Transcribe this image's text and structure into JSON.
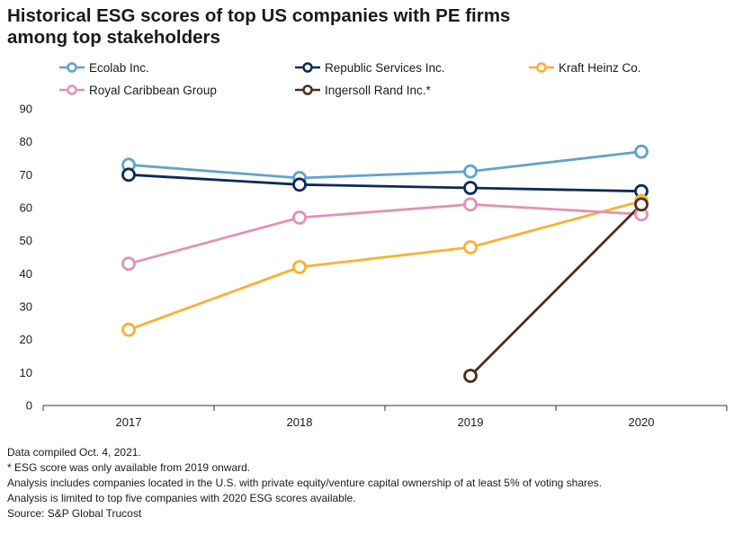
{
  "title_line1": "Historical ESG scores of top US companies with PE firms",
  "title_line2": "among top stakeholders",
  "chart_data": {
    "type": "line",
    "title": "Historical ESG scores of top US companies with PE firms among top stakeholders",
    "xlabel": "",
    "ylabel": "",
    "categories": [
      "2017",
      "2018",
      "2019",
      "2020"
    ],
    "ylim": [
      0,
      90
    ],
    "yticks": [
      0,
      10,
      20,
      30,
      40,
      50,
      60,
      70,
      80,
      90
    ],
    "grid": false,
    "legend_position": "top",
    "series": [
      {
        "name": "Ecolab Inc.",
        "color": "#5fa3cc",
        "values": [
          73,
          69,
          71,
          77
        ]
      },
      {
        "name": "Republic Services Inc.",
        "color": "#0e2a57",
        "values": [
          70,
          67,
          66,
          65
        ]
      },
      {
        "name": "Kraft Heinz Co.",
        "color": "#fbb033",
        "values": [
          23,
          42,
          48,
          62
        ]
      },
      {
        "name": "Royal Caribbean Group",
        "color": "#e093b5",
        "values": [
          43,
          57,
          61,
          58
        ]
      },
      {
        "name": "Ingersoll Rand Inc.*",
        "color": "#4f2d1e",
        "values": [
          null,
          null,
          9,
          61
        ]
      }
    ]
  },
  "notes": [
    "Data compiled Oct. 4, 2021.",
    "* ESG score was only available from 2019 onward.",
    "Analysis includes companies located in the U.S. with private equity/venture capital ownership of at least 5% of voting shares.",
    "Analysis is limited to top five companies with 2020 ESG scores available.",
    "Source: S&P Global Trucost"
  ]
}
